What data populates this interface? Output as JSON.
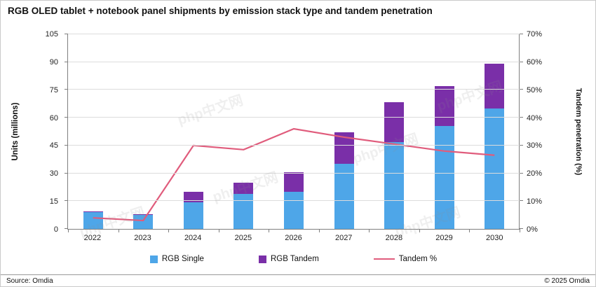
{
  "title": "RGB OLED tablet + notebook panel shipments by emission stack type and tandem penetration",
  "source": "Source: Omdia",
  "copyright": "© 2025 Omdia",
  "watermark": "php中文网",
  "chart_data": {
    "type": "bar",
    "subtype": "stacked-with-line",
    "categories": [
      "2022",
      "2023",
      "2024",
      "2025",
      "2026",
      "2027",
      "2028",
      "2029",
      "2030"
    ],
    "series": [
      {
        "name": "RGB Single",
        "color": "#4EA6E8",
        "values": [
          9,
          7.5,
          14.5,
          19,
          20,
          35,
          47,
          55.5,
          65
        ]
      },
      {
        "name": "RGB Tandem",
        "color": "#7A2FA8",
        "values": [
          0.5,
          0.5,
          5.5,
          6,
          10.5,
          17,
          21.5,
          21.5,
          24
        ]
      }
    ],
    "line_series": {
      "name": "Tandem %",
      "color": "#E05C7C",
      "axis": "right",
      "values": [
        4,
        3,
        30,
        28.5,
        36,
        33,
        30.5,
        28,
        26.5
      ]
    },
    "ylabel_left": "Units (millions)",
    "ylabel_right": "Tandem penetration (%)",
    "ylim_left": [
      0,
      105
    ],
    "yticks_left": [
      0,
      15,
      30,
      45,
      60,
      75,
      90,
      105
    ],
    "ylim_right": [
      0,
      70
    ],
    "yticks_right": [
      "0%",
      "10%",
      "20%",
      "30%",
      "40%",
      "50%",
      "60%",
      "70%"
    ],
    "grid": true,
    "legend_position": "bottom"
  }
}
